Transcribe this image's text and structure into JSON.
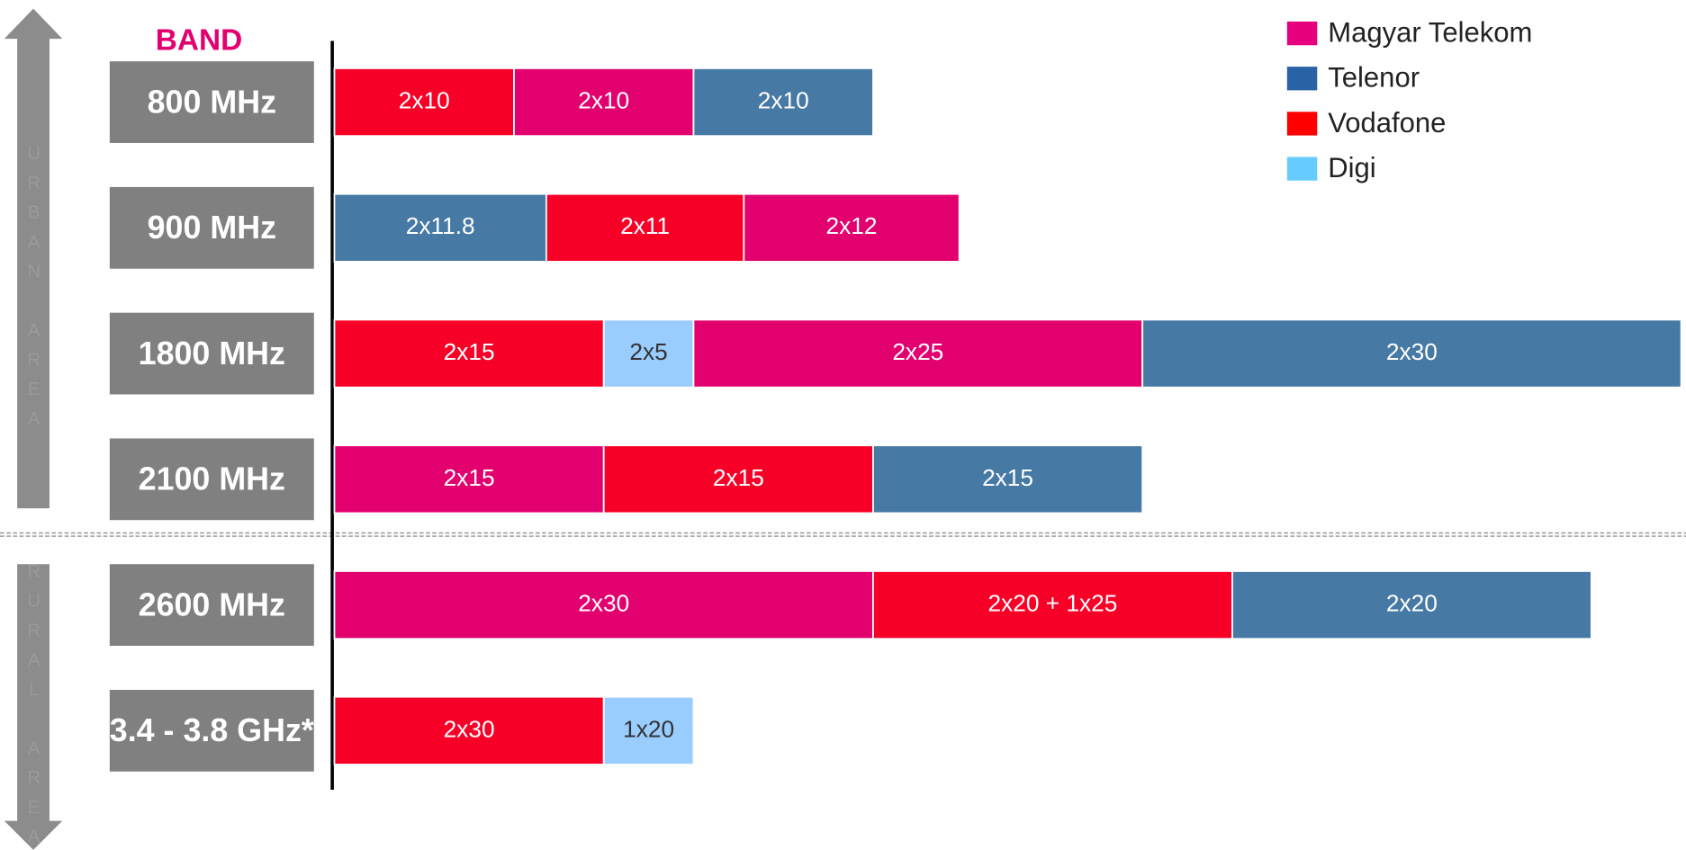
{
  "chart_data": {
    "type": "stacked-hbar",
    "header": "BAND",
    "urban_label": "URBAN AREA",
    "rural_label": "RURAL AREA",
    "operators": [
      {
        "name": "Magyar Telekom",
        "color": "#e6007e",
        "bar_color": "#e2006f"
      },
      {
        "name": "Telenor",
        "color": "#2a62a6",
        "bar_color": "#4679a4"
      },
      {
        "name": "Vodafone",
        "color": "#ff0000",
        "bar_color": "#f70028"
      },
      {
        "name": "Digi",
        "color": "#66ccff",
        "bar_color": "#99ccff"
      }
    ],
    "bands": [
      {
        "name": "800 MHz",
        "segments": [
          {
            "operator": 2,
            "label": "2x10",
            "value": 20
          },
          {
            "operator": 0,
            "label": "2x10",
            "value": 20
          },
          {
            "operator": 1,
            "label": "2x10",
            "value": 20
          }
        ]
      },
      {
        "name": "900 MHz",
        "segments": [
          {
            "operator": 1,
            "label": "2x11.8",
            "value": 23.6
          },
          {
            "operator": 2,
            "label": "2x11",
            "value": 22
          },
          {
            "operator": 0,
            "label": "2x12",
            "value": 24
          }
        ]
      },
      {
        "name": "1800 MHz",
        "segments": [
          {
            "operator": 2,
            "label": "2x15",
            "value": 30
          },
          {
            "operator": 3,
            "label": "2x5",
            "value": 10
          },
          {
            "operator": 0,
            "label": "2x25",
            "value": 50
          },
          {
            "operator": 1,
            "label": "2x30",
            "value": 60
          }
        ]
      },
      {
        "name": "2100 MHz",
        "segments": [
          {
            "operator": 0,
            "label": "2x15",
            "value": 30
          },
          {
            "operator": 2,
            "label": "2x15",
            "value": 30
          },
          {
            "operator": 1,
            "label": "2x15",
            "value": 30
          }
        ]
      },
      {
        "name": "2600 MHz",
        "segments": [
          {
            "operator": 0,
            "label": "2x30",
            "value": 60
          },
          {
            "operator": 2,
            "label": "2x20 + 1x25",
            "value": 40
          },
          {
            "operator": 1,
            "label": "2x20",
            "value": 40
          }
        ]
      },
      {
        "name": "3.4 - 3.8 GHz*",
        "segments": [
          {
            "operator": 2,
            "label": "2x30",
            "value": 30
          },
          {
            "operator": 3,
            "label": "1x20",
            "value": 10
          }
        ]
      }
    ]
  }
}
